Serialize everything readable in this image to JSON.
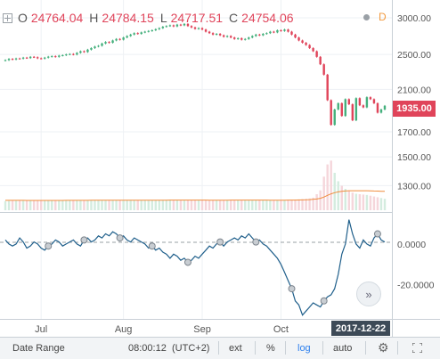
{
  "ohlc": {
    "open_label": "O",
    "open": "24764.04",
    "high_label": "H",
    "high": "24784.15",
    "low_label": "L",
    "low": "24717.51",
    "close_label": "C",
    "close": "24754.06"
  },
  "toolbar_top": {
    "interval_label": "D"
  },
  "current_price": "1935.00",
  "crosshair_date": "2017-12-22",
  "scroll_button": "»",
  "bottom_bar": {
    "date_range": "Date Range",
    "time": "08:00:12",
    "timezone": "(UTC+2)",
    "ext": "ext",
    "percent": "%",
    "log": "log",
    "auto": "auto"
  },
  "colors": {
    "up": "#45b07d",
    "down": "#e0445a",
    "indicator_line": "#1f5f8b",
    "volume_ma": "#f08c3b",
    "log_active": "#2f80ed"
  },
  "chart_data": [
    {
      "type": "candlestick",
      "panel": "price",
      "scale": "log",
      "y_ticks": [
        3000,
        2500,
        2100,
        1700,
        1500,
        1300
      ],
      "y_tick_labels": [
        "3000.00",
        "2500.00",
        "2100.00",
        "1700.00",
        "1500.00",
        "1300.00"
      ],
      "ylim": [
        1150,
        3250
      ],
      "x_ticks": [
        {
          "label": "Jul",
          "index": 10
        },
        {
          "label": "Aug",
          "index": 33
        },
        {
          "label": "Sep",
          "index": 55
        },
        {
          "label": "Oct",
          "index": 77
        }
      ],
      "closes": [
        2430,
        2445,
        2438,
        2450,
        2448,
        2460,
        2455,
        2470,
        2465,
        2452,
        2448,
        2460,
        2472,
        2478,
        2470,
        2485,
        2490,
        2500,
        2505,
        2498,
        2520,
        2540,
        2530,
        2560,
        2580,
        2600,
        2610,
        2640,
        2660,
        2650,
        2680,
        2700,
        2690,
        2720,
        2740,
        2760,
        2780,
        2770,
        2790,
        2800,
        2810,
        2820,
        2835,
        2850,
        2870,
        2880,
        2890,
        2875,
        2900,
        2890,
        2910,
        2880,
        2860,
        2840,
        2850,
        2830,
        2800,
        2780,
        2760,
        2770,
        2750,
        2730,
        2740,
        2720,
        2700,
        2710,
        2690,
        2700,
        2720,
        2740,
        2760,
        2750,
        2770,
        2780,
        2800,
        2790,
        2820,
        2810,
        2830,
        2800,
        2760,
        2720,
        2680,
        2650,
        2620,
        2580,
        2540,
        2470,
        2380,
        2260,
        1990,
        1760,
        1900,
        1960,
        1840,
        2000,
        1950,
        1800,
        2010,
        1940,
        1920,
        2020,
        2000,
        1960,
        1870,
        1900,
        1935
      ],
      "volume": [
        240,
        245,
        250,
        248,
        252,
        255,
        250,
        258,
        260,
        255,
        250,
        252,
        258,
        262,
        255,
        260,
        265,
        262,
        260,
        258,
        262,
        265,
        268,
        262,
        260,
        258,
        262,
        265,
        268,
        270,
        268,
        265,
        262,
        260,
        265,
        270,
        268,
        265,
        262,
        258,
        260,
        262,
        265,
        268,
        270,
        272,
        275,
        270,
        268,
        265,
        262,
        265,
        268,
        270,
        268,
        265,
        262,
        260,
        258,
        262,
        265,
        268,
        270,
        272,
        268,
        265,
        262,
        260,
        265,
        268,
        270,
        268,
        265,
        262,
        260,
        258,
        262,
        265,
        268,
        272,
        275,
        280,
        285,
        290,
        300,
        310,
        330,
        420,
        520,
        880,
        1200,
        1300,
        980,
        760,
        640,
        560,
        500,
        460,
        430,
        420,
        410,
        400,
        380,
        360,
        340,
        320,
        300
      ],
      "volume_ma": [
        260,
        260,
        260,
        259,
        258,
        258,
        257,
        257,
        257,
        257,
        256,
        256,
        256,
        256,
        257,
        257,
        257,
        258,
        258,
        258,
        259,
        259,
        260,
        260,
        261,
        261,
        262,
        262,
        263,
        263,
        263,
        263,
        263,
        264,
        264,
        264,
        264,
        264,
        264,
        264,
        263,
        263,
        263,
        263,
        264,
        264,
        265,
        265,
        265,
        265,
        265,
        265,
        265,
        265,
        265,
        265,
        265,
        264,
        264,
        264,
        264,
        264,
        264,
        265,
        265,
        265,
        265,
        265,
        265,
        265,
        265,
        265,
        265,
        265,
        264,
        264,
        264,
        264,
        264,
        265,
        266,
        267,
        269,
        271,
        274,
        278,
        284,
        295,
        312,
        345,
        390,
        430,
        460,
        480,
        495,
        505,
        510,
        512,
        512,
        512,
        511,
        510,
        508,
        505,
        502,
        498,
        494
      ]
    },
    {
      "type": "line",
      "panel": "indicator",
      "y_ticks": [
        0,
        -20
      ],
      "y_tick_labels": [
        "0.0000",
        "-20.0000"
      ],
      "ylim": [
        -36,
        14
      ],
      "values": [
        2,
        0,
        -1,
        0,
        3,
        1,
        -2,
        -1,
        1,
        0,
        -2,
        -3,
        -1,
        0,
        2,
        1,
        -1,
        0,
        1,
        2,
        0,
        -1,
        2,
        3,
        1,
        2,
        4,
        3,
        5,
        4,
        6,
        5,
        3,
        4,
        2,
        1,
        3,
        2,
        1,
        0,
        -2,
        -1,
        -3,
        -2,
        -4,
        -5,
        -7,
        -5,
        -6,
        -8,
        -7,
        -9,
        -8,
        -6,
        -7,
        -5,
        -3,
        -1,
        -2,
        0,
        1,
        -1,
        1,
        2,
        3,
        2,
        4,
        3,
        5,
        3,
        1,
        2,
        0,
        -1,
        -3,
        -5,
        -7,
        -10,
        -14,
        -18,
        -22,
        -28,
        -30,
        -35,
        -33,
        -31,
        -29,
        -30,
        -31,
        -28,
        -26,
        -25,
        -22,
        -15,
        -5,
        0,
        12,
        5,
        0,
        -2,
        2,
        0,
        -1,
        3,
        5,
        2,
        1
      ]
    }
  ]
}
